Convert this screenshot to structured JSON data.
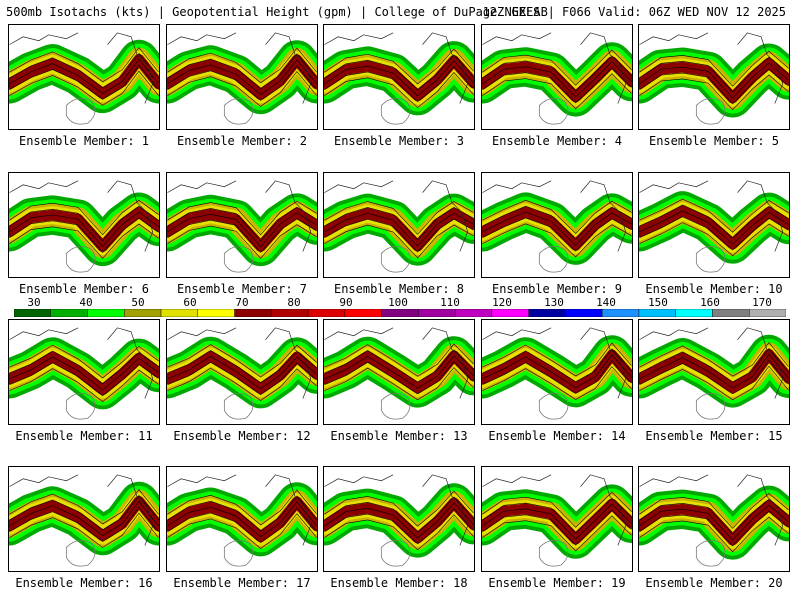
{
  "header": {
    "title_left": "500mb Isotachs (kts) | Geopotential Height (gpm) | College of DuPage NEXLAB",
    "title_right": "12Z GEFS | F066 Valid: 06Z WED NOV 12 2025"
  },
  "panels": [
    {
      "label": "Ensemble Member: 1"
    },
    {
      "label": "Ensemble Member: 2"
    },
    {
      "label": "Ensemble Member: 3"
    },
    {
      "label": "Ensemble Member: 4"
    },
    {
      "label": "Ensemble Member: 5"
    },
    {
      "label": "Ensemble Member: 6"
    },
    {
      "label": "Ensemble Member: 7"
    },
    {
      "label": "Ensemble Member: 8"
    },
    {
      "label": "Ensemble Member: 9"
    },
    {
      "label": "Ensemble Member: 10"
    },
    {
      "label": "Ensemble Member: 11"
    },
    {
      "label": "Ensemble Member: 12"
    },
    {
      "label": "Ensemble Member: 13"
    },
    {
      "label": "Ensemble Member: 14"
    },
    {
      "label": "Ensemble Member: 15"
    },
    {
      "label": "Ensemble Member: 16"
    },
    {
      "label": "Ensemble Member: 17"
    },
    {
      "label": "Ensemble Member: 18"
    },
    {
      "label": "Ensemble Member: 19"
    },
    {
      "label": "Ensemble Member: 20"
    }
  ],
  "colorbar": {
    "ticks": [
      "30",
      "40",
      "50",
      "60",
      "70",
      "80",
      "90",
      "100",
      "110",
      "120",
      "130",
      "140",
      "150",
      "160",
      "170"
    ],
    "colors": [
      "#006400",
      "#00b000",
      "#00ff00",
      "#a0a000",
      "#e0e000",
      "#ffff00",
      "#8b0000",
      "#b00000",
      "#dd0000",
      "#ff0000",
      "#800080",
      "#a000a0",
      "#c000c0",
      "#ff00ff",
      "#0000a0",
      "#0000ff",
      "#1e90ff",
      "#00bfff",
      "#00ffff",
      "#808080",
      "#b0b0b0"
    ]
  }
}
